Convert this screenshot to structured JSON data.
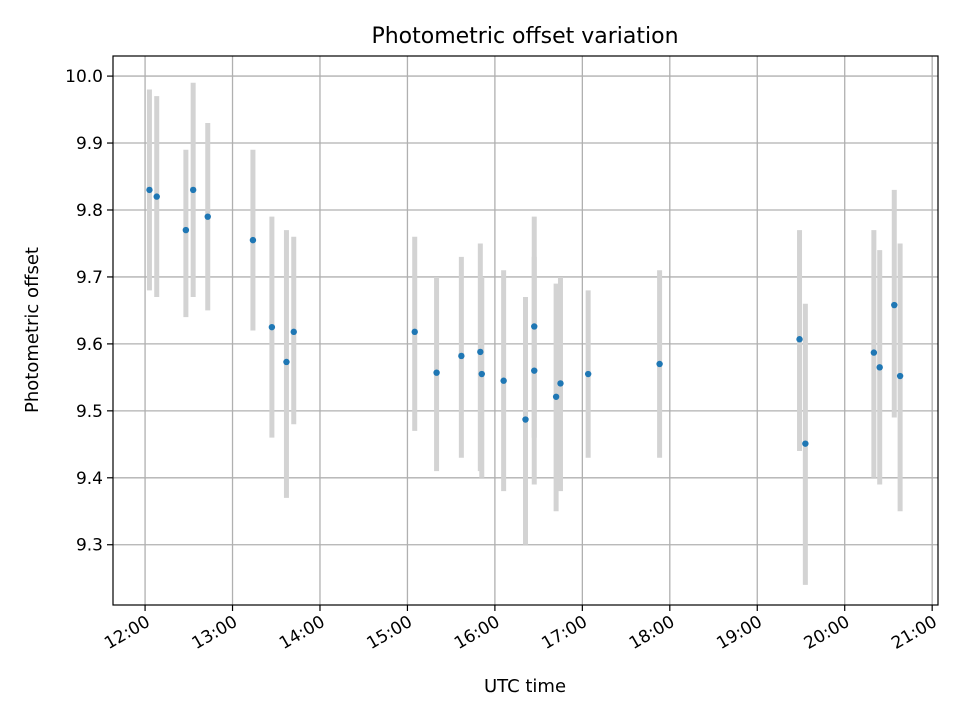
{
  "chart_data": {
    "type": "scatter",
    "title": "Photometric offset variation",
    "xlabel": "UTC time",
    "ylabel": "Photometric offset",
    "x_is_time": true,
    "x_tick_labels": [
      "12:00",
      "13:00",
      "14:00",
      "15:00",
      "16:00",
      "17:00",
      "18:00",
      "19:00",
      "20:00",
      "21:00"
    ],
    "y_ticks": [
      9.3,
      9.4,
      9.5,
      9.6,
      9.7,
      9.8,
      9.9,
      10.0
    ],
    "xlim": [
      "11:38",
      "21:04"
    ],
    "ylim": [
      9.21,
      10.03
    ],
    "grid": true,
    "colors": {
      "points": "#1f77b4",
      "errorbars": "#d3d3d3",
      "grid": "#b0b0b0"
    },
    "series": [
      {
        "points": [
          {
            "t": "12:03",
            "y": 9.83,
            "lo": 9.68,
            "hi": 9.98
          },
          {
            "t": "12:08",
            "y": 9.82,
            "lo": 9.67,
            "hi": 9.97
          },
          {
            "t": "12:28",
            "y": 9.77,
            "lo": 9.64,
            "hi": 9.89
          },
          {
            "t": "12:33",
            "y": 9.83,
            "lo": 9.67,
            "hi": 9.99
          },
          {
            "t": "12:43",
            "y": 9.79,
            "lo": 9.65,
            "hi": 9.93
          },
          {
            "t": "13:14",
            "y": 9.755,
            "lo": 9.62,
            "hi": 9.89
          },
          {
            "t": "13:27",
            "y": 9.625,
            "lo": 9.46,
            "hi": 9.79
          },
          {
            "t": "13:37",
            "y": 9.573,
            "lo": 9.37,
            "hi": 9.77
          },
          {
            "t": "13:42",
            "y": 9.618,
            "lo": 9.48,
            "hi": 9.76
          },
          {
            "t": "15:05",
            "y": 9.618,
            "lo": 9.47,
            "hi": 9.76
          },
          {
            "t": "15:20",
            "y": 9.557,
            "lo": 9.41,
            "hi": 9.7
          },
          {
            "t": "15:37",
            "y": 9.582,
            "lo": 9.43,
            "hi": 9.73
          },
          {
            "t": "15:50",
            "y": 9.588,
            "lo": 9.41,
            "hi": 9.75
          },
          {
            "t": "15:51",
            "y": 9.555,
            "lo": 9.4,
            "hi": 9.7
          },
          {
            "t": "16:06",
            "y": 9.545,
            "lo": 9.38,
            "hi": 9.71
          },
          {
            "t": "16:21",
            "y": 9.487,
            "lo": 9.3,
            "hi": 9.67
          },
          {
            "t": "16:27",
            "y": 9.626,
            "lo": 9.46,
            "hi": 9.79
          },
          {
            "t": "16:27",
            "y": 9.56,
            "lo": 9.39,
            "hi": 9.73
          },
          {
            "t": "16:42",
            "y": 9.521,
            "lo": 9.35,
            "hi": 9.69
          },
          {
            "t": "16:45",
            "y": 9.541,
            "lo": 9.38,
            "hi": 9.7
          },
          {
            "t": "17:04",
            "y": 9.555,
            "lo": 9.43,
            "hi": 9.68
          },
          {
            "t": "17:53",
            "y": 9.57,
            "lo": 9.43,
            "hi": 9.71
          },
          {
            "t": "19:29",
            "y": 9.607,
            "lo": 9.44,
            "hi": 9.77
          },
          {
            "t": "19:33",
            "y": 9.451,
            "lo": 9.24,
            "hi": 9.66
          },
          {
            "t": "20:20",
            "y": 9.587,
            "lo": 9.4,
            "hi": 9.77
          },
          {
            "t": "20:24",
            "y": 9.565,
            "lo": 9.39,
            "hi": 9.74
          },
          {
            "t": "20:34",
            "y": 9.658,
            "lo": 9.49,
            "hi": 9.83
          },
          {
            "t": "20:38",
            "y": 9.552,
            "lo": 9.35,
            "hi": 9.75
          }
        ]
      }
    ]
  }
}
